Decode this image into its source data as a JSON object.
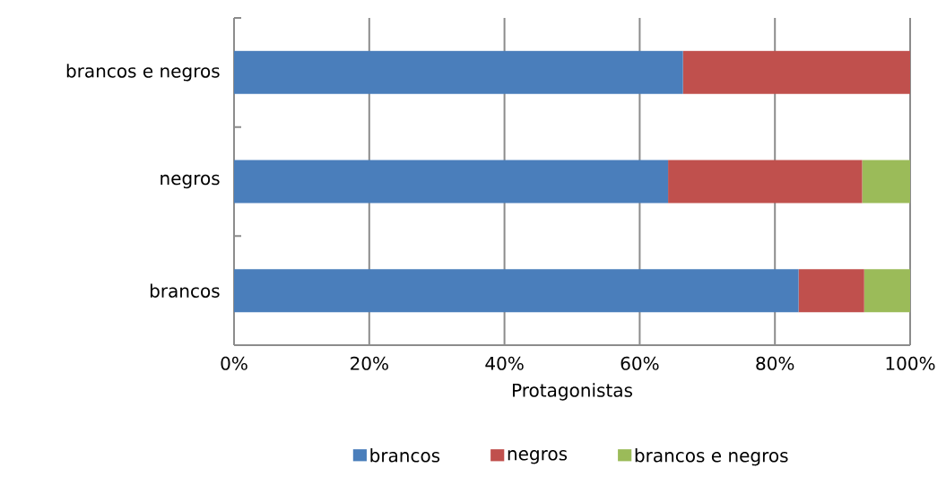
{
  "chart_data": {
    "type": "bar",
    "orientation": "horizontal",
    "stacked": true,
    "xlabel": "Protagonistas",
    "categories": [
      "brancos e negros",
      "negros",
      "brancos"
    ],
    "series": [
      {
        "name": "brancos",
        "color": "#4a7ebb",
        "values": [
          66.4,
          64.2,
          83.5
        ]
      },
      {
        "name": "negros",
        "color": "#c0504d",
        "values": [
          33.6,
          28.7,
          9.7
        ]
      },
      {
        "name": "brancos e negros",
        "color": "#9bbb59",
        "values": [
          null,
          7.1,
          6.8
        ]
      }
    ],
    "xlim": [
      0,
      100
    ],
    "xticks": [
      {
        "value": 0,
        "label": "0%"
      },
      {
        "value": 20,
        "label": "20%"
      },
      {
        "value": 40,
        "label": "40%"
      },
      {
        "value": 60,
        "label": "60%"
      },
      {
        "value": 80,
        "label": "80%"
      },
      {
        "value": 100,
        "label": "100%"
      }
    ],
    "grid": "x",
    "legend": "bottom"
  }
}
